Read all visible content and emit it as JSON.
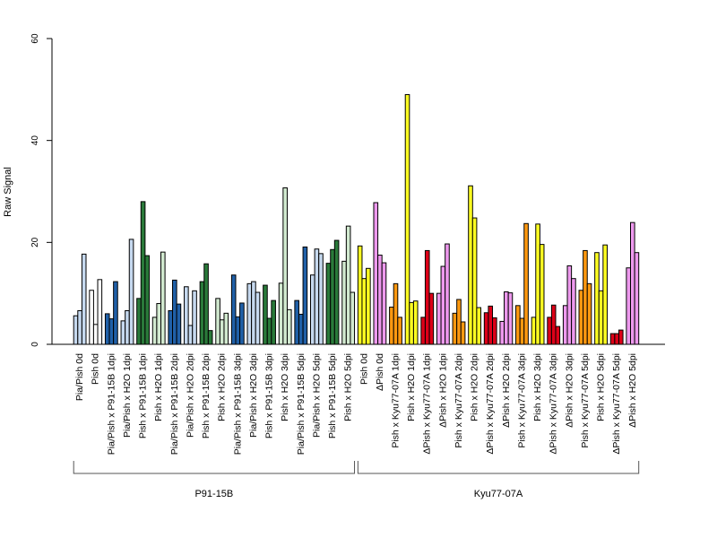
{
  "chart_data": {
    "type": "bar",
    "ylabel": "Raw Signal",
    "xlabel": "",
    "ylim": [
      0,
      60
    ],
    "yticks": [
      0,
      20,
      40,
      60
    ],
    "grid": false,
    "groups": [
      {
        "name": "P91-15B",
        "categories": [
          "Pia/Pish 0d",
          "Pish 0d",
          "Pia/Pish x P91-15B 1dpi",
          "Pia/Pish x H2O 1dpi",
          "Pish x P91-15B 1dpi",
          "Pish x H2O 1dpi",
          "Pia/Pish x P91-15B 2dpi",
          "Pia/Pish x H2O 2dpi",
          "Pish x P91-15B 2dpi",
          "Pish x H2O 2dpi",
          "Pia/Pish x P91-15B 3dpi",
          "Pia/Pish x H2O 3dpi",
          "Pish x P91-15B 3dpi",
          "Pish x H2O 3dpi",
          "Pia/Pish x P91-15B 5dpi",
          "Pia/Pish x H2O 5dpi",
          "Pish x P91-15B 5dpi",
          "Pish x H2O 5dpi"
        ]
      },
      {
        "name": "Kyu77-07A",
        "categories": [
          "Pish 0d",
          "ΔPish 0d",
          "Pish x Kyu77-07A 1dpi",
          "Pish x H2O 1dpi",
          "ΔPish x Kyu77-07A 1dpi",
          "ΔPish x H2O 1dpi",
          "Pish x Kyu77-07A 2dpi",
          "Pish x H2O 2dpi",
          "ΔPish x Kyu77-07A 2dpi",
          "ΔPish x H2O 2dpi",
          "Pish x Kyu77-07A 3dpi",
          "Pish x H2O 3dpi",
          "ΔPish x Kyu77-07A 3dpi",
          "ΔPish x H2O 3dpi",
          "Pish x Kyu77-07A 5dpi",
          "Pish x H2O 5dpi",
          "ΔPish x Kyu77-07A 5dpi",
          "ΔPish x H2O 5dpi"
        ]
      }
    ],
    "bar_colors": [
      "#c6d9ef",
      "#ffffff",
      "#2060a8",
      "#c6d9ef",
      "#2a7a3a",
      "#d2ead0",
      "#2060a8",
      "#c6d9ef",
      "#2a7a3a",
      "#d2ead0",
      "#2060a8",
      "#c6d9ef",
      "#2a7a3a",
      "#d2ead0",
      "#2060a8",
      "#c6d9ef",
      "#2a7a3a",
      "#d2ead0",
      "#ffff22",
      "#ee99ee",
      "#ff9910",
      "#ffff22",
      "#dd0018",
      "#ee99ee",
      "#ff9910",
      "#ffff22",
      "#dd0018",
      "#ee99ee",
      "#ff9910",
      "#ffff22",
      "#dd0018",
      "#ee99ee",
      "#ff9910",
      "#ffff22",
      "#dd0018",
      "#ee99ee"
    ],
    "values": [
      [
        5.6,
        6.6,
        17.7
      ],
      [
        10.6,
        3.9,
        12.7
      ],
      [
        6.0,
        5.0,
        12.3
      ],
      [
        4.6,
        6.6,
        20.6
      ],
      [
        9.0,
        28.0,
        17.4
      ],
      [
        5.3,
        8.0,
        18.1
      ],
      [
        6.6,
        12.6,
        7.9
      ],
      [
        11.3,
        3.7,
        10.5
      ],
      [
        12.3,
        15.8,
        2.7
      ],
      [
        9.0,
        4.8,
        6.1
      ],
      [
        13.6,
        5.4,
        8.1
      ],
      [
        11.9,
        12.3,
        10.2
      ],
      [
        11.6,
        5.1,
        8.6
      ],
      [
        12.0,
        30.7,
        6.8
      ],
      [
        8.6,
        5.9,
        19.1
      ],
      [
        13.6,
        18.7,
        17.8
      ],
      [
        15.9,
        18.6,
        20.4
      ],
      [
        16.3,
        23.2,
        10.2
      ],
      [
        19.3,
        12.9,
        14.9
      ],
      [
        27.8,
        17.5,
        16.0
      ],
      [
        7.3,
        11.9,
        5.3
      ],
      [
        49.0,
        8.2,
        8.5
      ],
      [
        5.3,
        18.4,
        10.0
      ],
      [
        10.0,
        15.3,
        19.7
      ],
      [
        6.1,
        8.8,
        4.4
      ],
      [
        31.1,
        24.8,
        7.2
      ],
      [
        6.2,
        7.5,
        5.2
      ],
      [
        4.5,
        10.3,
        10.1
      ],
      [
        7.6,
        5.1,
        23.7
      ],
      [
        5.3,
        23.6,
        19.6
      ],
      [
        5.3,
        7.7,
        3.5
      ],
      [
        7.6,
        15.4,
        12.9
      ],
      [
        10.6,
        18.4,
        11.9
      ],
      [
        18.0,
        10.5,
        19.5
      ],
      [
        2.1,
        2.1,
        2.8
      ],
      [
        15.0,
        23.9,
        18.0
      ]
    ]
  }
}
